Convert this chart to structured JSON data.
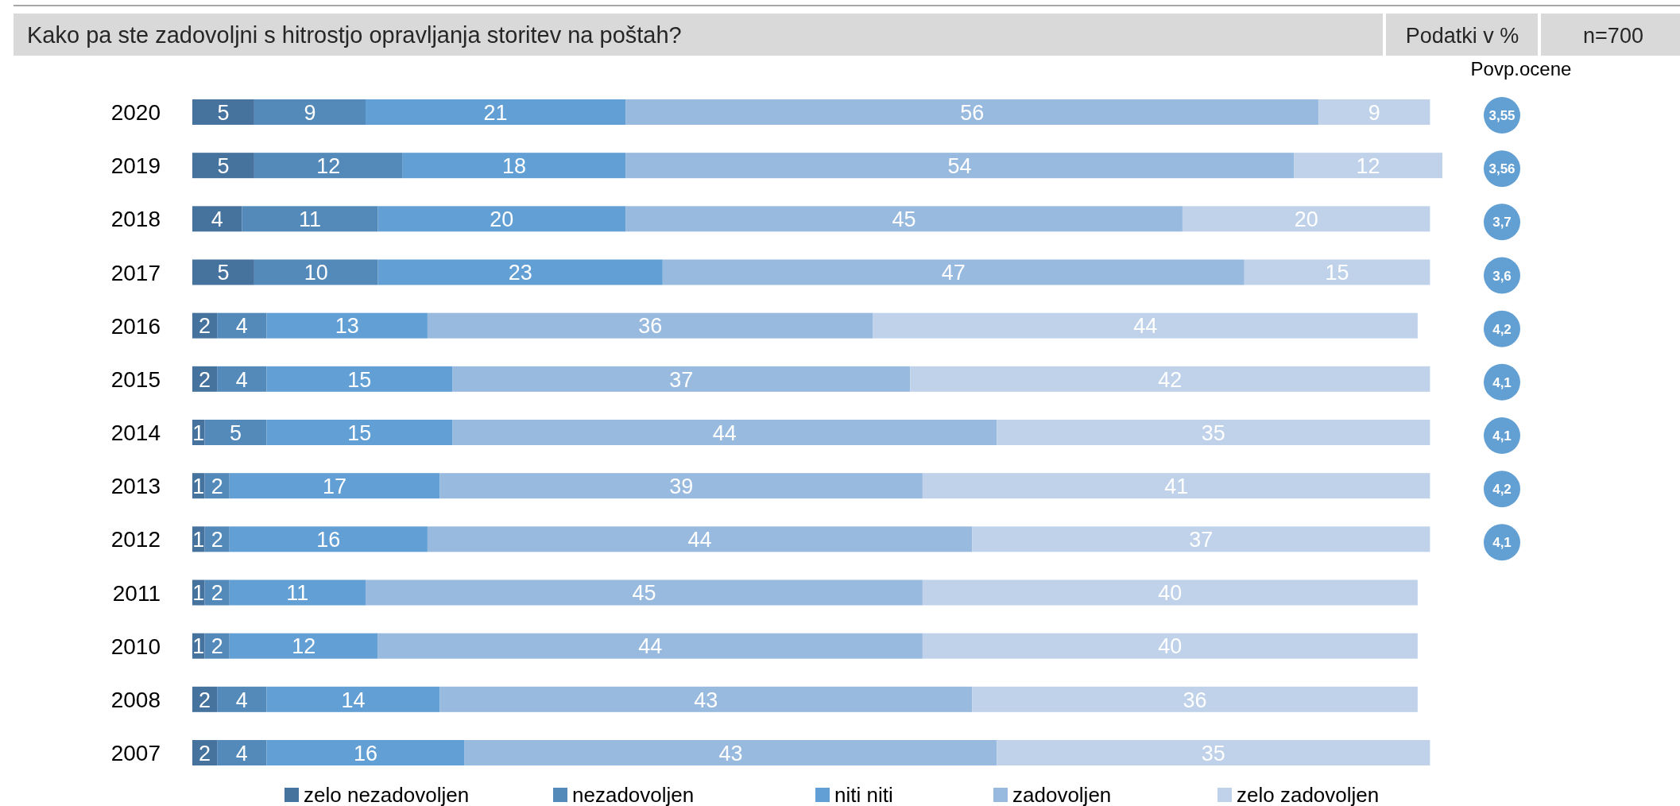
{
  "chart_data": {
    "type": "bar",
    "orientation": "horizontal",
    "stacked": true,
    "data_labels": true,
    "legend": "bottom",
    "title": "Kako pa ste zadovoljni s hitrostjo opravljanja storitev na poštah?",
    "subtitle": "Podatki v %",
    "categories": [
      "2020",
      "2019",
      "2018",
      "2017",
      "2016",
      "2015",
      "2014",
      "2013",
      "2012",
      "2011",
      "2010",
      "2008",
      "2007"
    ],
    "series": [
      {
        "name": "zelo nezadovoljen",
        "color": "#46729e",
        "values": [
          5,
          5,
          4,
          5,
          2,
          2,
          1,
          1,
          1,
          1,
          1,
          2,
          2
        ]
      },
      {
        "name": "nezadovoljen",
        "color": "#548ab9",
        "values": [
          9,
          12,
          11,
          10,
          4,
          4,
          5,
          2,
          2,
          2,
          2,
          4,
          4
        ]
      },
      {
        "name": "niti niti",
        "color": "#619fd4",
        "values": [
          21,
          18,
          20,
          23,
          13,
          15,
          15,
          17,
          16,
          11,
          12,
          14,
          16
        ]
      },
      {
        "name": "zadovoljen",
        "color": "#99badf",
        "values": [
          56,
          54,
          45,
          47,
          36,
          37,
          44,
          39,
          44,
          45,
          44,
          43,
          43
        ]
      },
      {
        "name": "zelo zadovoljen",
        "color": "#bfd2e9",
        "values": [
          9,
          12,
          20,
          15,
          44,
          42,
          35,
          41,
          37,
          40,
          40,
          36,
          35
        ]
      }
    ],
    "annotations": [
      "n=700",
      "Povp.ocene",
      "3,55",
      "3,56",
      "3,7",
      "3,6",
      "4,2",
      "4,1",
      "4,1",
      "4,2",
      "4,1"
    ]
  }
}
